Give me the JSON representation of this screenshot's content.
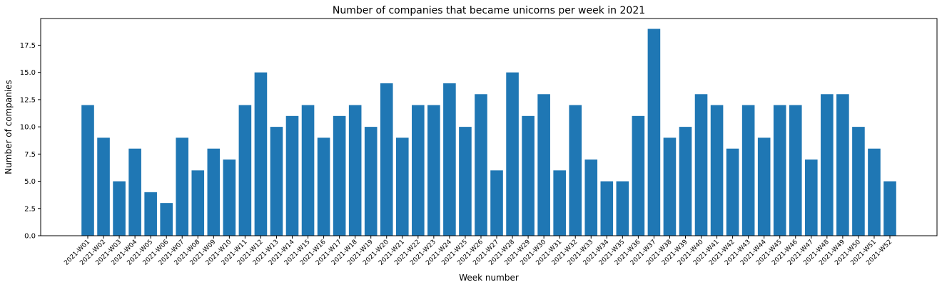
{
  "chart_data": {
    "type": "bar",
    "title": "Number of companies that became unicorns per week in 2021",
    "xlabel": "Week number",
    "ylabel": "Number of companies",
    "bar_color": "#1f77b4",
    "ylim": [
      0,
      19.95
    ],
    "yticks": [
      "0.0",
      "2.5",
      "5.0",
      "7.5",
      "10.0",
      "12.5",
      "15.0",
      "17.5"
    ],
    "ytick_values": [
      0,
      2.5,
      5,
      7.5,
      10,
      12.5,
      15,
      17.5
    ],
    "categories": [
      "2021-W01",
      "2021-W02",
      "2021-W03",
      "2021-W04",
      "2021-W05",
      "2021-W06",
      "2021-W07",
      "2021-W08",
      "2021-W09",
      "2021-W10",
      "2021-W11",
      "2021-W12",
      "2021-W13",
      "2021-W14",
      "2021-W15",
      "2021-W16",
      "2021-W17",
      "2021-W18",
      "2021-W19",
      "2021-W20",
      "2021-W21",
      "2021-W22",
      "2021-W23",
      "2021-W24",
      "2021-W25",
      "2021-W26",
      "2021-W27",
      "2021-W28",
      "2021-W29",
      "2021-W30",
      "2021-W31",
      "2021-W32",
      "2021-W33",
      "2021-W34",
      "2021-W35",
      "2021-W36",
      "2021-W37",
      "2021-W38",
      "2021-W39",
      "2021-W40",
      "2021-W41",
      "2021-W42",
      "2021-W43",
      "2021-W44",
      "2021-W45",
      "2021-W46",
      "2021-W47",
      "2021-W48",
      "2021-W49",
      "2021-W50",
      "2021-W51",
      "2021-W52"
    ],
    "values": [
      12,
      9,
      5,
      8,
      4,
      3,
      9,
      6,
      8,
      7,
      12,
      15,
      10,
      11,
      12,
      9,
      11,
      12,
      10,
      14,
      9,
      12,
      12,
      14,
      10,
      13,
      6,
      15,
      11,
      13,
      6,
      12,
      7,
      5,
      5,
      11,
      19,
      9,
      10,
      13,
      12,
      8,
      12,
      9,
      12,
      12,
      7,
      13,
      13,
      10,
      8,
      5
    ],
    "grid": false,
    "legend": "none"
  }
}
